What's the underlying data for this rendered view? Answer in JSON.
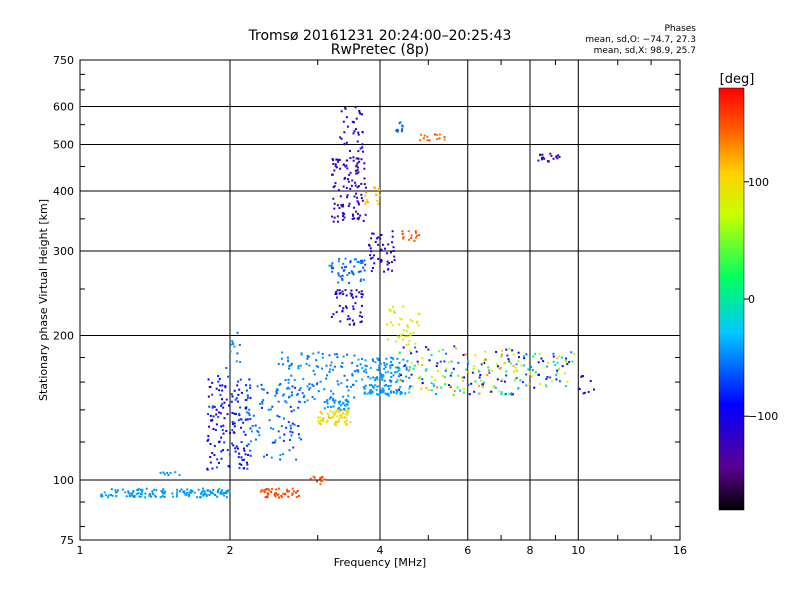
{
  "header": {
    "title": "Tromsø 20161231 20:24:00–20:25:43",
    "subtitle": "RwPretec (8p)",
    "phases_title": "Phases",
    "phases_o": "mean, sd,O: −74.7, 27.3",
    "phases_x": "mean, sd,X: 98.9, 25.7"
  },
  "colorbar": {
    "label": "[deg]",
    "ticks": [
      "100",
      "0",
      "−100"
    ],
    "tick_values": [
      100,
      0,
      -100
    ],
    "range": [
      -180,
      180
    ]
  },
  "chart_data": {
    "type": "scatter",
    "xlabel": "Frequency [MHz]",
    "ylabel": "Stationary phase Virtual Height [km]",
    "x_scale": "log",
    "y_scale": "log",
    "xlim": [
      1,
      16
    ],
    "ylim": [
      75,
      750
    ],
    "x_ticks": [
      1,
      2,
      4,
      6,
      8,
      10,
      16
    ],
    "x_tick_labels": [
      "1",
      "2",
      "4",
      "6",
      "8",
      "10",
      "16"
    ],
    "y_ticks": [
      75,
      100,
      200,
      300,
      400,
      500,
      600,
      750
    ],
    "y_tick_labels": [
      "75",
      "100",
      "200",
      "300",
      "400",
      "500",
      "600",
      "750"
    ],
    "grid": true,
    "color_scale": "phase [deg], rainbow",
    "clusters": [
      {
        "x": [
          1.1,
          2.0
        ],
        "y": [
          92,
          96
        ],
        "n": 150,
        "phase": [
          -50,
          -35
        ]
      },
      {
        "x": [
          1.45,
          1.6
        ],
        "y": [
          102,
          104
        ],
        "n": 8,
        "phase": [
          -50,
          -40
        ]
      },
      {
        "x": [
          1.8,
          2.2
        ],
        "y": [
          105,
          165
        ],
        "n": 150,
        "phase": [
          -120,
          -60
        ]
      },
      {
        "x": [
          1.95,
          2.1
        ],
        "y": [
          170,
          205
        ],
        "n": 12,
        "phase": [
          -60,
          -40
        ]
      },
      {
        "x": [
          2.15,
          2.8
        ],
        "y": [
          110,
          160
        ],
        "n": 90,
        "phase": [
          -80,
          -40
        ]
      },
      {
        "x": [
          2.3,
          2.75
        ],
        "y": [
          92,
          96
        ],
        "n": 50,
        "phase": [
          140,
          165
        ]
      },
      {
        "x": [
          2.9,
          3.1
        ],
        "y": [
          98,
          102
        ],
        "n": 12,
        "phase": [
          140,
          160
        ]
      },
      {
        "x": [
          2.5,
          3.6
        ],
        "y": [
          145,
          185
        ],
        "n": 120,
        "phase": [
          -60,
          -40
        ]
      },
      {
        "x": [
          3.0,
          3.5
        ],
        "y": [
          130,
          140
        ],
        "n": 60,
        "phase": [
          80,
          120
        ]
      },
      {
        "x": [
          3.1,
          3.5
        ],
        "y": [
          140,
          148
        ],
        "n": 30,
        "phase": [
          -50,
          -35
        ]
      },
      {
        "x": [
          3.2,
          3.75
        ],
        "y": [
          345,
          470
        ],
        "n": 110,
        "phase": [
          -135,
          -105
        ]
      },
      {
        "x": [
          3.3,
          3.7
        ],
        "y": [
          470,
          600
        ],
        "n": 35,
        "phase": [
          -130,
          -100
        ]
      },
      {
        "x": [
          3.15,
          3.75
        ],
        "y": [
          255,
          290
        ],
        "n": 50,
        "phase": [
          -70,
          -45
        ]
      },
      {
        "x": [
          3.2,
          3.7
        ],
        "y": [
          210,
          250
        ],
        "n": 50,
        "phase": [
          -130,
          -95
        ]
      },
      {
        "x": [
          3.6,
          4.6
        ],
        "y": [
          160,
          180
        ],
        "n": 90,
        "phase": [
          -55,
          -35
        ]
      },
      {
        "x": [
          3.7,
          4.5
        ],
        "y": [
          150,
          158
        ],
        "n": 60,
        "phase": [
          -50,
          -35
        ]
      },
      {
        "x": [
          3.8,
          4.3
        ],
        "y": [
          270,
          330
        ],
        "n": 45,
        "phase": [
          -130,
          -100
        ]
      },
      {
        "x": [
          3.7,
          4.0
        ],
        "y": [
          370,
          420
        ],
        "n": 15,
        "phase": [
          100,
          125
        ]
      },
      {
        "x": [
          4.4,
          4.8
        ],
        "y": [
          315,
          330
        ],
        "n": 15,
        "phase": [
          140,
          160
        ]
      },
      {
        "x": [
          4.1,
          4.8
        ],
        "y": [
          190,
          230
        ],
        "n": 40,
        "phase": [
          60,
          110
        ]
      },
      {
        "x": [
          4.3,
          6.0
        ],
        "y": [
          150,
          190
        ],
        "n": 90,
        "phase": [
          -130,
          140
        ]
      },
      {
        "x": [
          4.3,
          4.5
        ],
        "y": [
          530,
          560
        ],
        "n": 10,
        "phase": [
          -70,
          -50
        ]
      },
      {
        "x": [
          4.8,
          5.4
        ],
        "y": [
          510,
          525
        ],
        "n": 14,
        "phase": [
          130,
          160
        ]
      },
      {
        "x": [
          6.0,
          7.5
        ],
        "y": [
          150,
          190
        ],
        "n": 80,
        "phase": [
          -130,
          140
        ]
      },
      {
        "x": [
          7.5,
          9.8
        ],
        "y": [
          155,
          185
        ],
        "n": 70,
        "phase": [
          -130,
          120
        ]
      },
      {
        "x": [
          8.3,
          9.2
        ],
        "y": [
          460,
          480
        ],
        "n": 20,
        "phase": [
          -130,
          -110
        ]
      },
      {
        "x": [
          10.0,
          10.8
        ],
        "y": [
          150,
          165
        ],
        "n": 10,
        "phase": [
          -130,
          -100
        ]
      }
    ]
  }
}
